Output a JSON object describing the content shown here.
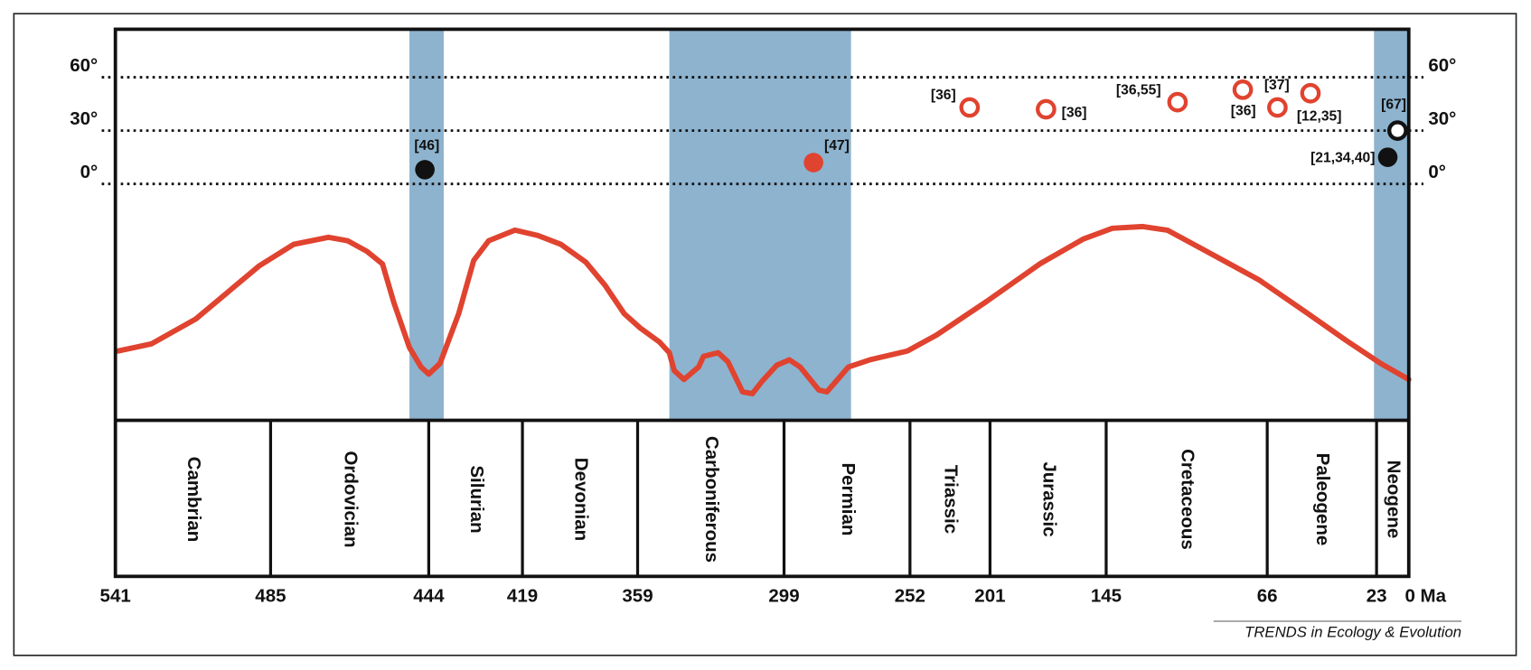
{
  "chart_data": {
    "type": "line",
    "source": "TRENDS in Ecology & Evolution",
    "xlim": [
      541,
      0
    ],
    "xticks": [
      541,
      485,
      444,
      419,
      359,
      299,
      252,
      201,
      145,
      66,
      23,
      {
        "value": 0,
        "label": "0 Ma"
      }
    ],
    "periods": [
      "Cambrian",
      "Ordovician",
      "Silurian",
      "Devonian",
      "Carboniferous",
      "Permian",
      "Triassic",
      "Jurassic",
      "Cretaceous",
      "Paleogene",
      "Neogene"
    ],
    "ylim": [
      -133,
      87
    ],
    "yticks": [
      {
        "value": 0,
        "label": "0°"
      },
      {
        "value": 30,
        "label": "30°"
      },
      {
        "value": 60,
        "label": "60°"
      }
    ],
    "grid": true,
    "band_color": "#8db3cf",
    "shaded_bands": [
      [
        449,
        440
      ],
      [
        346,
        274
      ],
      [
        24,
        0
      ]
    ],
    "series": [
      {
        "type": "line",
        "color": "#e0432f",
        "x": [
          540,
          528,
          512,
          489,
          479,
          470,
          465,
          460,
          456,
          453,
          449,
          446,
          444,
          441,
          436,
          432,
          428,
          421,
          411,
          399,
          386,
          376,
          366,
          358,
          350,
          346,
          344,
          340,
          334,
          332,
          326,
          322,
          316,
          312,
          308,
          302,
          297,
          293,
          286,
          283,
          279,
          275,
          267,
          253,
          235,
          203,
          177,
          156,
          142,
          127,
          115,
          94,
          70,
          50,
          35,
          20,
          0
        ],
        "values": [
          -94,
          -90,
          -76,
          -46,
          -34,
          -30,
          -32,
          -38,
          -45,
          -67,
          -92,
          -103,
          -107,
          -101,
          -73,
          -43,
          -32,
          -26,
          -29,
          -34,
          -44,
          -57,
          -73,
          -81,
          -89,
          -95,
          -105,
          -110,
          -103,
          -97,
          -95,
          -100,
          -117,
          -118,
          -111,
          -102,
          -99,
          -103,
          -116,
          -117,
          -110,
          -103,
          -99,
          -94,
          -85,
          -66,
          -45,
          -31,
          -25,
          -24,
          -26,
          -39,
          -54,
          -73,
          -88,
          -101,
          -110
        ]
      },
      {
        "type": "scatter",
        "marker": "filled",
        "color": "#111111",
        "x": [
          445,
          15
        ],
        "values": [
          8,
          15
        ],
        "labels": [
          "[46]",
          "[21,34,40]"
        ]
      },
      {
        "type": "scatter",
        "marker": "filled",
        "color": "#e0432f",
        "x": [
          288
        ],
        "values": [
          12
        ],
        "labels": [
          "[47]"
        ]
      },
      {
        "type": "scatter",
        "marker": "open",
        "color": "#e0432f",
        "x": [
          214,
          174,
          110,
          78,
          62,
          49
        ],
        "values": [
          43,
          42,
          46,
          53,
          43,
          51
        ],
        "labels": [
          "[36]",
          "[36]",
          "[36,55]",
          "[37]",
          "[36]",
          "[12,35]"
        ]
      },
      {
        "type": "scatter",
        "marker": "open",
        "color": "#111111",
        "x": [
          8
        ],
        "values": [
          30
        ],
        "labels": [
          "[67]"
        ]
      }
    ]
  }
}
